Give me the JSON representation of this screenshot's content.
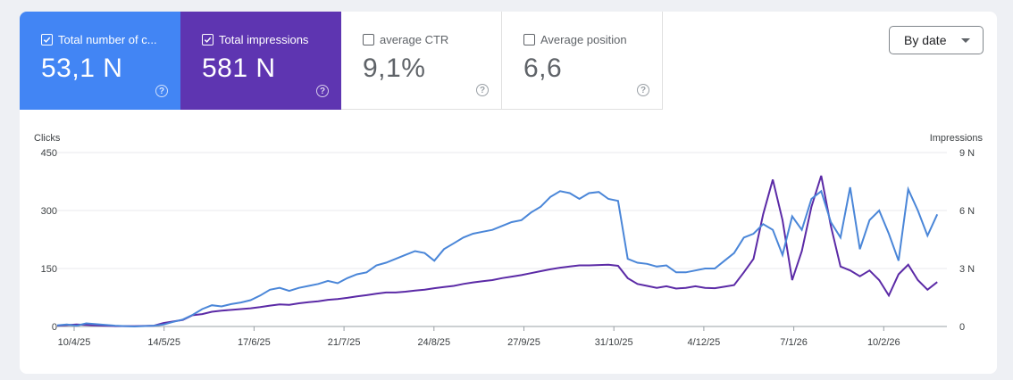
{
  "tiles": [
    {
      "label": "Total number of c...",
      "value": "53,1 N",
      "checked": true,
      "help": "?"
    },
    {
      "label": "Total impressions",
      "value": "581 N",
      "checked": true,
      "help": "?"
    },
    {
      "label": "average CTR",
      "value": "9,1%",
      "checked": false,
      "help": "?"
    },
    {
      "label": "Average position",
      "value": "6,6",
      "checked": false,
      "help": "?"
    }
  ],
  "date_button": {
    "label": "By date"
  },
  "colors": {
    "clicks": "#4285f4",
    "impressions": "#5e35b1",
    "clicks_line": "#4a86d8",
    "impressions_line": "#5b2aa6"
  },
  "chart_data": {
    "type": "line",
    "y_left_label": "Clicks",
    "y_right_label": "Impressions",
    "y_left_ticks": [
      "450",
      "300",
      "150",
      "0"
    ],
    "y_right_ticks": [
      "9 N",
      "6 N",
      "3 N",
      "0"
    ],
    "y_left_range": [
      0,
      450
    ],
    "y_right_range": [
      0,
      9000
    ],
    "x_tick_labels": [
      "10/4/25",
      "14/5/25",
      "17/6/25",
      "21/7/25",
      "24/8/25",
      "27/9/25",
      "31/10/25",
      "4/12/25",
      "7/1/26",
      "10/2/26"
    ],
    "x": [
      "10/4/25",
      "14/5/25",
      "17/6/25",
      "21/7/25",
      "24/8/25",
      "27/9/25",
      "31/10/25",
      "4/12/25",
      "7/1/26",
      "10/2/26"
    ],
    "series": [
      {
        "name": "Clicks",
        "axis": "left",
        "values": [
          [
            0,
            3
          ],
          [
            5,
            5
          ],
          [
            10,
            2
          ],
          [
            15,
            8
          ],
          [
            20,
            6
          ],
          [
            25,
            4
          ],
          [
            30,
            2
          ],
          [
            35,
            1
          ],
          [
            40,
            0
          ],
          [
            50,
            2
          ],
          [
            55,
            5
          ],
          [
            60,
            12
          ],
          [
            65,
            18
          ],
          [
            70,
            30
          ],
          [
            75,
            45
          ],
          [
            80,
            55
          ],
          [
            85,
            52
          ],
          [
            90,
            58
          ],
          [
            95,
            62
          ],
          [
            100,
            68
          ],
          [
            105,
            80
          ],
          [
            110,
            95
          ],
          [
            115,
            100
          ],
          [
            120,
            92
          ],
          [
            125,
            100
          ],
          [
            130,
            105
          ],
          [
            135,
            110
          ],
          [
            140,
            118
          ],
          [
            145,
            112
          ],
          [
            150,
            125
          ],
          [
            155,
            135
          ],
          [
            160,
            140
          ],
          [
            165,
            158
          ],
          [
            170,
            165
          ],
          [
            175,
            175
          ],
          [
            180,
            185
          ],
          [
            185,
            195
          ],
          [
            190,
            190
          ],
          [
            195,
            170
          ],
          [
            200,
            200
          ],
          [
            205,
            215
          ],
          [
            210,
            230
          ],
          [
            215,
            240
          ],
          [
            220,
            245
          ],
          [
            225,
            250
          ],
          [
            230,
            260
          ],
          [
            235,
            270
          ],
          [
            240,
            275
          ],
          [
            245,
            295
          ],
          [
            250,
            310
          ],
          [
            255,
            335
          ],
          [
            260,
            350
          ],
          [
            265,
            345
          ],
          [
            270,
            330
          ],
          [
            275,
            345
          ],
          [
            280,
            348
          ],
          [
            285,
            330
          ],
          [
            290,
            325
          ],
          [
            295,
            175
          ],
          [
            300,
            165
          ],
          [
            305,
            162
          ],
          [
            310,
            155
          ],
          [
            315,
            158
          ],
          [
            320,
            140
          ],
          [
            325,
            140
          ],
          [
            330,
            145
          ],
          [
            335,
            150
          ],
          [
            340,
            150
          ],
          [
            345,
            170
          ],
          [
            350,
            190
          ],
          [
            355,
            230
          ],
          [
            360,
            240
          ],
          [
            365,
            265
          ],
          [
            370,
            250
          ],
          [
            375,
            185
          ],
          [
            380,
            285
          ],
          [
            385,
            250
          ],
          [
            390,
            330
          ],
          [
            395,
            350
          ],
          [
            400,
            270
          ],
          [
            405,
            230
          ],
          [
            410,
            360
          ],
          [
            415,
            200
          ],
          [
            420,
            275
          ],
          [
            425,
            300
          ],
          [
            430,
            240
          ],
          [
            435,
            170
          ],
          [
            440,
            355
          ],
          [
            445,
            300
          ],
          [
            450,
            235
          ],
          [
            455,
            290
          ]
        ]
      },
      {
        "name": "Impressions",
        "axis": "right",
        "values": [
          [
            0,
            40
          ],
          [
            10,
            100
          ],
          [
            20,
            60
          ],
          [
            30,
            20
          ],
          [
            40,
            20
          ],
          [
            50,
            40
          ],
          [
            55,
            180
          ],
          [
            60,
            260
          ],
          [
            65,
            340
          ],
          [
            70,
            580
          ],
          [
            75,
            640
          ],
          [
            80,
            760
          ],
          [
            85,
            820
          ],
          [
            90,
            860
          ],
          [
            95,
            900
          ],
          [
            100,
            940
          ],
          [
            105,
            1000
          ],
          [
            110,
            1080
          ],
          [
            115,
            1140
          ],
          [
            120,
            1120
          ],
          [
            125,
            1200
          ],
          [
            130,
            1260
          ],
          [
            135,
            1300
          ],
          [
            140,
            1380
          ],
          [
            145,
            1420
          ],
          [
            150,
            1480
          ],
          [
            155,
            1560
          ],
          [
            160,
            1620
          ],
          [
            165,
            1700
          ],
          [
            170,
            1760
          ],
          [
            175,
            1760
          ],
          [
            180,
            1800
          ],
          [
            185,
            1860
          ],
          [
            190,
            1900
          ],
          [
            195,
            1980
          ],
          [
            200,
            2040
          ],
          [
            205,
            2100
          ],
          [
            210,
            2200
          ],
          [
            215,
            2280
          ],
          [
            220,
            2340
          ],
          [
            225,
            2400
          ],
          [
            230,
            2500
          ],
          [
            235,
            2580
          ],
          [
            240,
            2660
          ],
          [
            245,
            2760
          ],
          [
            250,
            2860
          ],
          [
            255,
            2960
          ],
          [
            260,
            3040
          ],
          [
            265,
            3100
          ],
          [
            270,
            3160
          ],
          [
            275,
            3160
          ],
          [
            280,
            3180
          ],
          [
            285,
            3200
          ],
          [
            290,
            3140
          ],
          [
            295,
            2500
          ],
          [
            300,
            2200
          ],
          [
            305,
            2100
          ],
          [
            310,
            2000
          ],
          [
            315,
            2080
          ],
          [
            320,
            1960
          ],
          [
            325,
            2000
          ],
          [
            330,
            2080
          ],
          [
            335,
            2000
          ],
          [
            340,
            1980
          ],
          [
            345,
            2060
          ],
          [
            350,
            2140
          ],
          [
            355,
            2800
          ],
          [
            360,
            3500
          ],
          [
            365,
            5800
          ],
          [
            370,
            7600
          ],
          [
            375,
            5500
          ],
          [
            380,
            2400
          ],
          [
            385,
            3900
          ],
          [
            390,
            6200
          ],
          [
            395,
            7800
          ],
          [
            400,
            5200
          ],
          [
            405,
            3100
          ],
          [
            410,
            2900
          ],
          [
            415,
            2600
          ],
          [
            420,
            2900
          ],
          [
            425,
            2400
          ],
          [
            430,
            1600
          ],
          [
            435,
            2700
          ],
          [
            440,
            3200
          ],
          [
            445,
            2400
          ],
          [
            450,
            1900
          ],
          [
            455,
            2300
          ]
        ]
      }
    ]
  }
}
